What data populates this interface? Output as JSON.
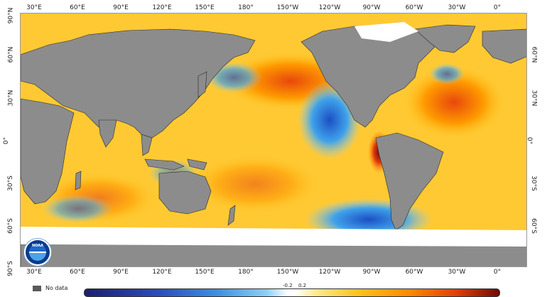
{
  "map": {
    "axis_top": [
      "30°E",
      "60°E",
      "90°E",
      "120°E",
      "150°E",
      "180°",
      "150°W",
      "120°W",
      "90°W",
      "60°W",
      "30°W",
      "0°"
    ],
    "axis_bottom": [
      "30°E",
      "60°E",
      "90°E",
      "120°E",
      "150°E",
      "180°",
      "150°W",
      "120°W",
      "90°W",
      "60°W",
      "30°W",
      "0°"
    ],
    "axis_left": [
      "90°N",
      "60°N",
      "30°N",
      "0°",
      "30°S",
      "60°S",
      "90°S"
    ],
    "axis_right": [
      "60°N",
      "30°N",
      "0°",
      "30°S",
      "60°S"
    ],
    "colors": {
      "land": "#8c8c8c",
      "ice": "#ffffff",
      "warm": "#ffb300",
      "hot": "#e8480c",
      "cool": "#3fa2ea",
      "deep_cool": "#1c4fc4"
    }
  },
  "logo": {
    "text": "NOAA"
  },
  "legend": {
    "no_data_label": "No data",
    "colorbar_ticks": [
      "-0.2",
      "0.2"
    ]
  }
}
